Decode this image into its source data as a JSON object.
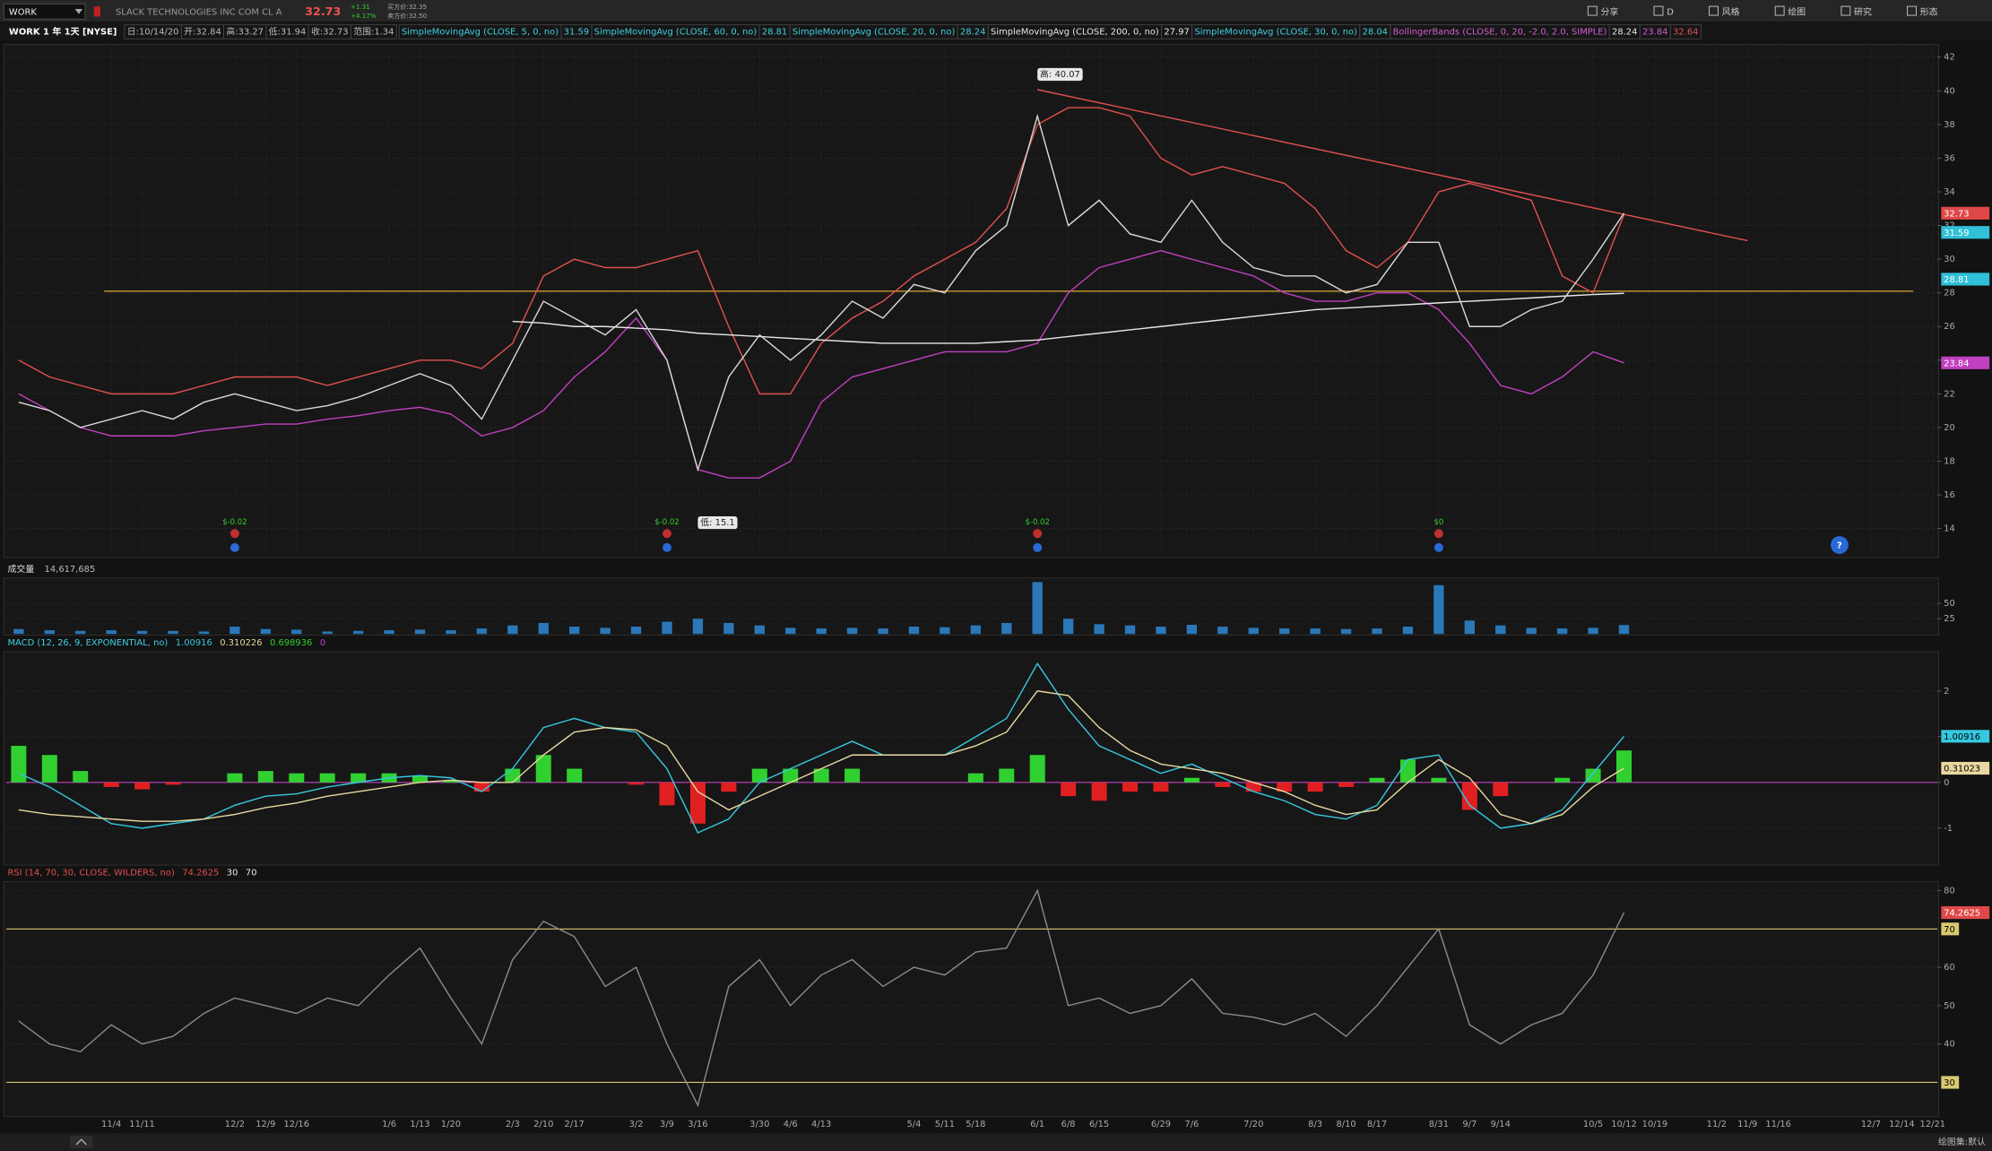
{
  "toolbar": {
    "symbol": "WORK",
    "company": "SLACK TECHNOLOGIES INC COM CL A",
    "last": "32.73",
    "change": "+1.31",
    "change_pct": "+4.17%",
    "bid": "买方价:32.35",
    "ask": "卖方价:32.50",
    "buttons": [
      "分享",
      "D",
      "风格",
      "绘图",
      "研究",
      "形态"
    ]
  },
  "header": {
    "title": "WORK 1 年 1天 [NYSE]",
    "ohlc": [
      "日:10/14/20",
      "开:32.84",
      "高:33.27",
      "低:31.94",
      "收:32.73",
      "范围:1.34"
    ],
    "studies": [
      {
        "label": "SimpleMovingAvg (CLOSE, 5, 0, no)",
        "color": "#40d0e0",
        "values": [
          "31.59"
        ],
        "value_colors": [
          "#40d0e0"
        ]
      },
      {
        "label": "SimpleMovingAvg (CLOSE, 60, 0, no)",
        "color": "#40d0e0",
        "values": [
          "28.81"
        ],
        "value_colors": [
          "#40d0e0"
        ]
      },
      {
        "label": "SimpleMovingAvg (CLOSE, 20, 0, no)",
        "color": "#40d0e0",
        "values": [
          "28.24"
        ],
        "value_colors": [
          "#40d0e0"
        ]
      },
      {
        "label": "SimpleMovingAvg (CLOSE, 200, 0, no)",
        "color": "#e8e8e8",
        "values": [
          "27.97"
        ],
        "value_colors": [
          "#e8e8e8"
        ]
      },
      {
        "label": "SimpleMovingAvg (CLOSE, 30, 0, no)",
        "color": "#40d0e0",
        "values": [
          "28.04"
        ],
        "value_colors": [
          "#40d0e0"
        ]
      },
      {
        "label": "BollingerBands (CLOSE, 0, 20, -2.0, 2.0, SIMPLE)",
        "color": "#d060d0",
        "values": [
          "28.24",
          "23.84",
          "32.64"
        ],
        "value_colors": [
          "#e8e8e8",
          "#d060d0",
          "#e05050"
        ]
      }
    ]
  },
  "help": "?",
  "footer": {
    "drawing_set": "绘图集:默认"
  },
  "chart_data": [
    {
      "type": "price",
      "categories": [
        null,
        null,
        null,
        "11/4",
        "11/11",
        null,
        null,
        "12/2",
        "12/9",
        "12/16",
        null,
        null,
        "1/6",
        "1/13",
        "1/20",
        null,
        "2/3",
        "2/10",
        "2/17",
        null,
        "3/2",
        "3/9",
        "3/16",
        null,
        "3/30",
        "4/6",
        "4/13",
        null,
        null,
        "5/4",
        "5/11",
        "5/18",
        null,
        "6/1",
        "6/8",
        "6/15",
        null,
        "6/29",
        "7/6",
        null,
        "7/20",
        null,
        "8/3",
        "8/10",
        "8/17",
        null,
        "8/31",
        "9/7",
        "9/14",
        null,
        null,
        "10/5",
        "10/12",
        "10/19",
        null,
        "11/2",
        "11/9",
        "11/16",
        null,
        null,
        "12/7",
        "12/14",
        "12/21"
      ],
      "ylim": [
        12.34,
        42.6
      ],
      "yticks": [
        14,
        16,
        18,
        20,
        22,
        24,
        26,
        28,
        30,
        32,
        34,
        36,
        38,
        40,
        42
      ],
      "grid": true,
      "series": [
        {
          "color": "#e05050",
          "values": [
            24,
            23,
            22.5,
            22,
            22,
            22,
            22.5,
            23,
            23,
            23,
            22.5,
            23,
            23.5,
            24,
            24,
            23.5,
            25,
            29,
            30,
            29.5,
            29.5,
            30,
            30.5,
            26,
            22,
            22,
            25,
            26.5,
            27.5,
            29,
            30,
            31,
            33,
            38,
            39,
            39,
            38.5,
            36,
            35,
            35.5,
            35,
            34.5,
            33,
            30.5,
            29.5,
            31,
            34,
            34.5,
            34,
            33.5,
            29,
            28,
            32.64,
            null,
            null,
            null,
            null,
            null,
            null,
            null,
            null,
            null,
            null
          ]
        },
        {
          "color": "#c040c0",
          "values": [
            22,
            21,
            20,
            19.5,
            19.5,
            19.5,
            19.8,
            20,
            20.2,
            20.2,
            20.5,
            20.7,
            21,
            21.2,
            20.8,
            19.5,
            20,
            21,
            23,
            24.5,
            26.5,
            24,
            17.5,
            17,
            17,
            18,
            21.5,
            23,
            23.5,
            24,
            24.5,
            24.5,
            24.5,
            25,
            28,
            29.5,
            30,
            30.5,
            30,
            29.5,
            29,
            28,
            27.5,
            27.5,
            28,
            28,
            27,
            25,
            22.5,
            22,
            23,
            24.5,
            23.84,
            null,
            null,
            null,
            null,
            null,
            null,
            null,
            null,
            null,
            null
          ]
        },
        {
          "color": "#e8e8e8",
          "values": [
            null,
            null,
            null,
            null,
            null,
            null,
            null,
            null,
            null,
            null,
            null,
            null,
            null,
            null,
            null,
            null,
            26.3,
            26.2,
            26,
            26,
            25.9,
            25.8,
            25.6,
            25.5,
            25.4,
            25.3,
            25.2,
            25.1,
            25,
            25,
            25,
            25,
            25.1,
            25.2,
            25.4,
            25.6,
            25.8,
            26,
            26.2,
            26.4,
            26.6,
            26.8,
            27,
            27.1,
            27.2,
            27.3,
            27.4,
            27.5,
            27.6,
            27.7,
            27.8,
            27.9,
            27.97,
            null,
            null,
            null,
            null,
            null,
            null,
            null,
            null,
            null,
            null
          ]
        },
        {
          "color": "#d8d8d8",
          "values": [
            21.5,
            21.0,
            20.0,
            20.5,
            21.0,
            20.5,
            21.5,
            22.0,
            21.5,
            21.0,
            21.3,
            21.8,
            22.5,
            23.2,
            22.5,
            20.5,
            24.0,
            27.5,
            26.5,
            25.5,
            27.0,
            24.0,
            17.5,
            23.0,
            25.5,
            24.0,
            25.5,
            27.5,
            26.5,
            28.5,
            28.0,
            30.5,
            32.0,
            38.5,
            32.0,
            33.5,
            31.5,
            31.0,
            33.5,
            31.0,
            29.5,
            29.0,
            29.0,
            28.0,
            28.5,
            31.0,
            31.0,
            26.0,
            26.0,
            27.0,
            27.5,
            30.0,
            32.73,
            null,
            null,
            null,
            null,
            null,
            null,
            null,
            null,
            null,
            null
          ]
        }
      ],
      "level": 28.1,
      "level_color": "#c89a30",
      "trendline": {
        "from": {
          "x": 33,
          "value": 40.07
        },
        "to": {
          "x": 56,
          "value": 31.1
        },
        "color": "#e05050"
      },
      "price_tags": [
        {
          "value": 32.73,
          "color": "#e04848"
        },
        {
          "value": 31.59,
          "color": "#30c0d8"
        },
        {
          "value": 28.81,
          "color": "#30c0d8"
        },
        {
          "value": 23.84,
          "color": "#c040c0"
        }
      ],
      "extremes": [
        {
          "label": "高: 40.07",
          "x": 33,
          "value": 40.07
        },
        {
          "label": "低: 15.1",
          "x": 22,
          "value": 15.1
        }
      ],
      "events": [
        {
          "x": 7,
          "label": "$-0.02"
        },
        {
          "x": 21,
          "label": "$-0.02"
        },
        {
          "x": 33,
          "label": "$-0.02"
        },
        {
          "x": 46,
          "label": "$0"
        }
      ]
    },
    {
      "type": "volume",
      "title": "成交量",
      "readout": "14,617,685",
      "ylim": [
        0,
        87.5
      ],
      "yticks": [
        25,
        50
      ],
      "color": "#2a78b8",
      "values": [
        8,
        6,
        5,
        6,
        5,
        5,
        4,
        12,
        8,
        7,
        4,
        5,
        6,
        7,
        6,
        9,
        14,
        18,
        12,
        10,
        12,
        20,
        25,
        18,
        14,
        10,
        9,
        10,
        9,
        12,
        11,
        14,
        18,
        85,
        25,
        16,
        14,
        12,
        15,
        12,
        10,
        9,
        9,
        8,
        9,
        12,
        80,
        22,
        14,
        10,
        9,
        10,
        14.6,
        null,
        null,
        null,
        null,
        null,
        null,
        null,
        null,
        null,
        null
      ]
    },
    {
      "type": "macd",
      "title": "MACD (12, 26, 9, EXPONENTIAL, no)",
      "readouts": [
        "1.00916",
        "0.310226",
        "0.698936",
        "0"
      ],
      "readout_colors": [
        "#36c8e0",
        "#e8d8a0",
        "#30d030",
        "#c040c0"
      ],
      "ylim": [
        -1.78,
        2.83
      ],
      "yticks": [
        -1,
        0,
        1,
        2
      ],
      "series": [
        {
          "color": "#36c8e0",
          "values": [
            0.2,
            -0.1,
            -0.5,
            -0.9,
            -1.0,
            -0.9,
            -0.8,
            -0.5,
            -0.3,
            -0.25,
            -0.1,
            0.0,
            0.1,
            0.15,
            0.1,
            -0.2,
            0.3,
            1.2,
            1.4,
            1.2,
            1.1,
            0.3,
            -1.1,
            -0.8,
            0.0,
            0.3,
            0.6,
            0.9,
            0.6,
            0.6,
            0.6,
            1.0,
            1.4,
            2.6,
            1.6,
            0.8,
            0.5,
            0.2,
            0.4,
            0.1,
            -0.2,
            -0.4,
            -0.7,
            -0.8,
            -0.5,
            0.5,
            0.6,
            -0.5,
            -1.0,
            -0.9,
            -0.6,
            0.2,
            1.00916,
            null,
            null,
            null,
            null,
            null,
            null,
            null,
            null,
            null,
            null
          ]
        },
        {
          "color": "#e8d8a0",
          "values": [
            -0.6,
            -0.7,
            -0.75,
            -0.8,
            -0.85,
            -0.85,
            -0.8,
            -0.7,
            -0.55,
            -0.45,
            -0.3,
            -0.2,
            -0.1,
            0.0,
            0.05,
            0.0,
            0.0,
            0.6,
            1.1,
            1.2,
            1.15,
            0.8,
            -0.2,
            -0.6,
            -0.3,
            0.0,
            0.3,
            0.6,
            0.6,
            0.6,
            0.6,
            0.8,
            1.1,
            2.0,
            1.9,
            1.2,
            0.7,
            0.4,
            0.3,
            0.2,
            0.0,
            -0.2,
            -0.5,
            -0.7,
            -0.6,
            0.0,
            0.5,
            0.1,
            -0.7,
            -0.9,
            -0.7,
            -0.1,
            0.310226,
            null,
            null,
            null,
            null,
            null,
            null,
            null,
            null,
            null,
            null
          ]
        }
      ],
      "histogram": [
        0.8,
        0.6,
        0.25,
        -0.1,
        -0.15,
        -0.05,
        0,
        0.2,
        0.25,
        0.2,
        0.2,
        0.2,
        0.2,
        0.15,
        0.05,
        -0.2,
        0.3,
        0.6,
        0.3,
        0,
        -0.05,
        -0.5,
        -0.9,
        -0.2,
        0.3,
        0.3,
        0.3,
        0.3,
        0,
        0,
        0,
        0.2,
        0.3,
        0.6,
        -0.3,
        -0.4,
        -0.2,
        -0.2,
        0.1,
        -0.1,
        -0.2,
        -0.2,
        -0.2,
        -0.1,
        0.1,
        0.5,
        0.1,
        -0.6,
        -0.3,
        0,
        0.1,
        0.3,
        0.698936,
        null,
        null,
        null,
        null,
        null,
        null,
        null,
        null,
        null,
        null
      ],
      "histogram_colors": [
        "#30d030",
        "#e02020"
      ],
      "zero_line_color": "#c040c0",
      "tags": [
        {
          "value": 1.00916,
          "color": "#36c8e0"
        },
        {
          "value": 0.310226,
          "label": "0.31023",
          "color": "#e8d8a0"
        }
      ]
    },
    {
      "type": "rsi",
      "title": "RSI (14, 70, 30, CLOSE, WILDERS, no)",
      "readouts": [
        "74.2625",
        "30",
        "70"
      ],
      "readout_colors": [
        "#e05050",
        "#e8e8e8",
        "#e8e8e8"
      ],
      "ylim": [
        21.4,
        82
      ],
      "yticks": [
        40,
        50,
        60,
        80
      ],
      "levels": [
        70,
        30
      ],
      "level_color": "#d8c870",
      "series": [
        {
          "color": "#8a8a8a",
          "values": [
            46,
            40,
            38,
            45,
            40,
            42,
            48,
            52,
            50,
            48,
            52,
            50,
            58,
            65,
            52,
            40,
            62,
            72,
            68,
            55,
            60,
            40,
            24,
            55,
            62,
            50,
            58,
            62,
            55,
            60,
            58,
            64,
            65,
            80,
            50,
            52,
            48,
            50,
            57,
            48,
            47,
            45,
            48,
            42,
            50,
            60,
            70,
            45,
            40,
            45,
            48,
            58,
            74.2625,
            null,
            null,
            null,
            null,
            null,
            null,
            null,
            null,
            null,
            null
          ]
        }
      ],
      "tags": [
        {
          "value": 74.2625,
          "color": "#e04848"
        }
      ]
    }
  ]
}
